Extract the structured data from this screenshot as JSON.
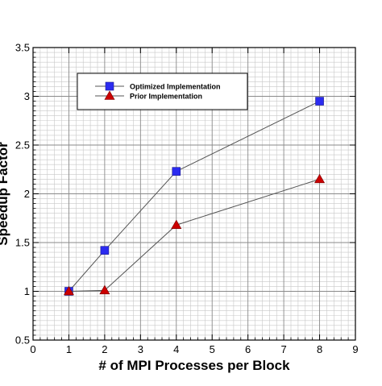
{
  "chart_data": {
    "type": "line",
    "title": "",
    "xlabel": "# of MPI Processes per Block",
    "ylabel": "Speedup Factor",
    "xlim": [
      0,
      9
    ],
    "ylim": [
      0.5,
      3.5
    ],
    "x_ticks": [
      "0",
      "1",
      "2",
      "3",
      "4",
      "5",
      "6",
      "7",
      "8",
      "9"
    ],
    "y_ticks": [
      "0.5",
      "1",
      "1.5",
      "2",
      "2.5",
      "3",
      "3.5"
    ],
    "grid": true,
    "legend_position": "top-left",
    "series": [
      {
        "name": "Optimized Implementation",
        "marker": "square",
        "color": "#2b2bf0",
        "x": [
          1,
          2,
          4,
          8
        ],
        "y": [
          1.0,
          1.42,
          2.23,
          2.95
        ]
      },
      {
        "name": "Prior Implementation",
        "marker": "triangle",
        "color": "#cc0000",
        "x": [
          1,
          2,
          4,
          8
        ],
        "y": [
          1.0,
          1.01,
          1.68,
          2.15
        ]
      }
    ]
  }
}
